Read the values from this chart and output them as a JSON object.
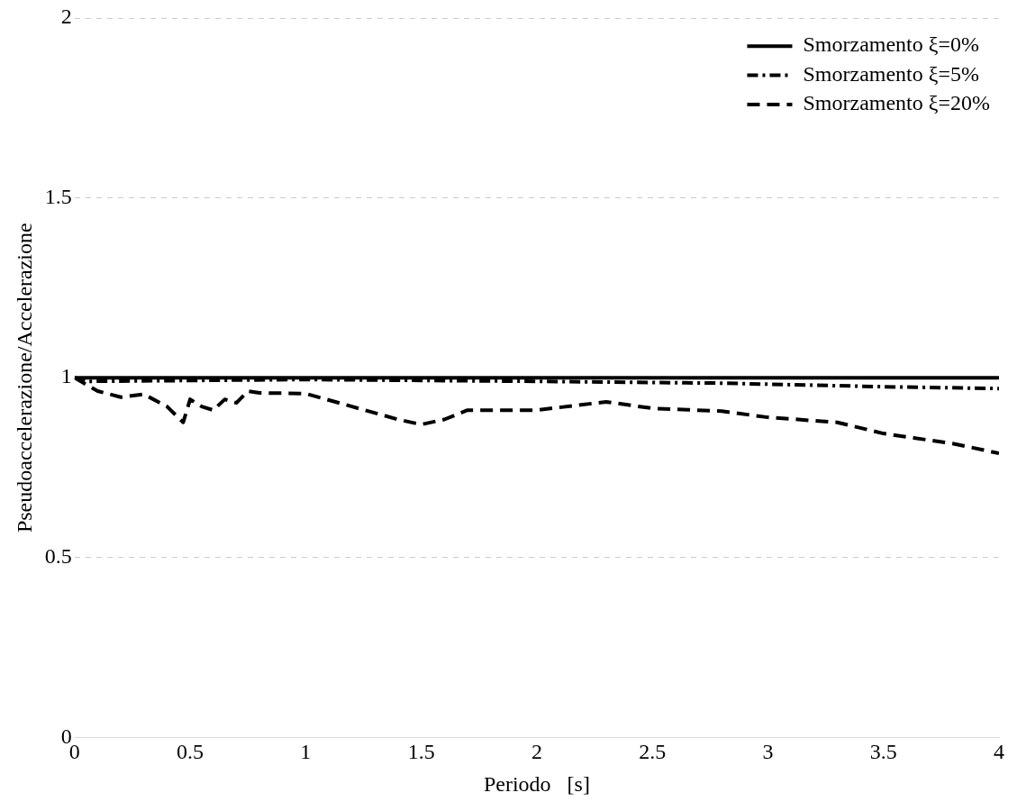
{
  "chart_data": {
    "type": "line",
    "xlabel": "Periodo   [s]",
    "ylabel": "Pseudoaccelerazione/Accelerazione",
    "xlim": [
      0,
      4
    ],
    "xticks": [
      0,
      0.5,
      1,
      1.5,
      2,
      2.5,
      3,
      3.5,
      4
    ],
    "ylim": [
      0,
      2
    ],
    "yticks": [
      0,
      0.5,
      1,
      1.5,
      2
    ],
    "grid": "y",
    "legend": "top right",
    "marker": "none",
    "series": [
      {
        "name": "Smorzamento ξ=0%",
        "color": "#000000",
        "line_style": "solid",
        "x": [
          0,
          4
        ],
        "values": [
          1,
          1
        ]
      },
      {
        "name": "Smorzamento ξ=5%",
        "color": "#000000",
        "line_style": "dashdot",
        "x": [
          0,
          0.05,
          1,
          2,
          2.8,
          3.5,
          4
        ],
        "values": [
          1,
          0.99,
          0.995,
          0.99,
          0.985,
          0.975,
          0.97
        ]
      },
      {
        "name": "Smorzamento ξ=20%",
        "color": "#000000",
        "line_style": "dashed",
        "x": [
          0,
          0.1,
          0.2,
          0.3,
          0.4,
          0.47,
          0.5,
          0.55,
          0.6,
          0.65,
          0.7,
          0.75,
          0.8,
          1,
          1.2,
          1.4,
          1.5,
          1.6,
          1.7,
          2,
          2.3,
          2.5,
          2.8,
          3,
          3.3,
          3.5,
          3.8,
          4
        ],
        "values": [
          1,
          0.963,
          0.946,
          0.954,
          0.92,
          0.876,
          0.94,
          0.92,
          0.91,
          0.94,
          0.93,
          0.963,
          0.958,
          0.956,
          0.92,
          0.884,
          0.87,
          0.884,
          0.91,
          0.91,
          0.933,
          0.915,
          0.907,
          0.89,
          0.876,
          0.845,
          0.817,
          0.79
        ]
      }
    ]
  }
}
